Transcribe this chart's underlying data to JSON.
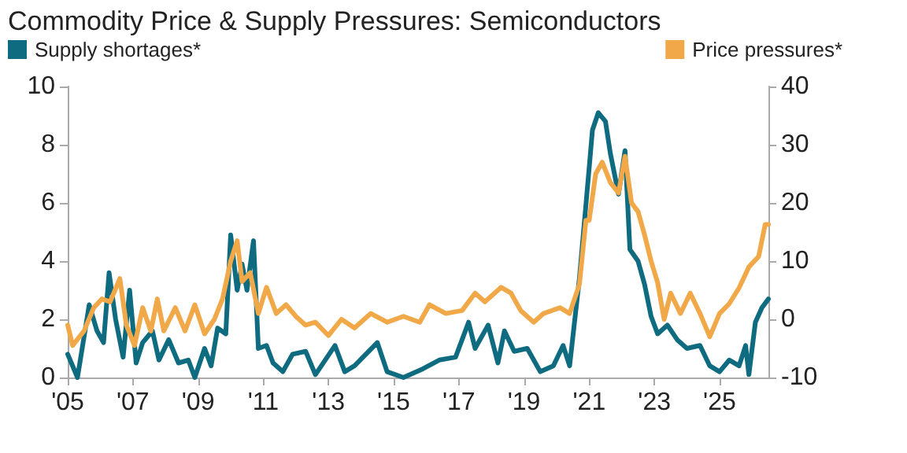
{
  "chart_data": {
    "type": "line",
    "title": "Commodity Price & Supply Pressures: Semiconductors",
    "xlim": [
      2005,
      2026.5
    ],
    "xticks": [
      {
        "value": 2005,
        "label": "'05"
      },
      {
        "value": 2007,
        "label": "'07"
      },
      {
        "value": 2009,
        "label": "'09"
      },
      {
        "value": 2011,
        "label": "'11"
      },
      {
        "value": 2013,
        "label": "'13"
      },
      {
        "value": 2015,
        "label": "'15"
      },
      {
        "value": 2017,
        "label": "'17"
      },
      {
        "value": 2019,
        "label": "'19"
      },
      {
        "value": 2021,
        "label": "'21"
      },
      {
        "value": 2023,
        "label": "'23"
      },
      {
        "value": 2025,
        "label": "'25"
      }
    ],
    "ylim": [
      0,
      10
    ],
    "yticks": [
      0,
      2,
      4,
      6,
      8,
      10
    ],
    "y2lim": [
      -10,
      40
    ],
    "y2ticks": [
      -10,
      0,
      10,
      20,
      30,
      40
    ],
    "grid": false,
    "legend": "top",
    "marker": "none",
    "line_style": "solid",
    "series": [
      {
        "name": "Supply shortages*",
        "color": "#0f6b80",
        "axis": "y",
        "x": [
          2005.0,
          2005.3,
          2005.66,
          2005.9,
          2006.1,
          2006.27,
          2006.47,
          2006.7,
          2006.9,
          2007.1,
          2007.3,
          2007.6,
          2007.8,
          2008.1,
          2008.4,
          2008.7,
          2008.9,
          2009.2,
          2009.4,
          2009.6,
          2009.85,
          2010.0,
          2010.2,
          2010.35,
          2010.5,
          2010.7,
          2010.85,
          2011.1,
          2011.3,
          2011.6,
          2011.9,
          2012.3,
          2012.6,
          2013.2,
          2013.5,
          2013.8,
          2014.5,
          2014.8,
          2015.3,
          2015.9,
          2016.4,
          2016.9,
          2017.3,
          2017.5,
          2017.9,
          2018.2,
          2018.4,
          2018.7,
          2019.1,
          2019.5,
          2019.9,
          2020.2,
          2020.4,
          2020.7,
          2021.0,
          2021.1,
          2021.28,
          2021.5,
          2021.65,
          2021.9,
          2022.1,
          2022.25,
          2022.5,
          2022.7,
          2022.9,
          2023.1,
          2023.4,
          2023.7,
          2024.0,
          2024.4,
          2024.7,
          2025.0,
          2025.3,
          2025.6,
          2025.8,
          2025.9,
          2026.1,
          2026.3,
          2026.5
        ],
        "values": [
          0.8,
          0.0,
          2.5,
          1.6,
          1.2,
          3.6,
          2.0,
          0.7,
          3.0,
          0.5,
          1.2,
          1.6,
          0.6,
          1.3,
          0.5,
          0.6,
          0.0,
          1.0,
          0.4,
          1.7,
          1.5,
          4.9,
          3.0,
          3.9,
          3.0,
          4.7,
          1.0,
          1.1,
          0.5,
          0.2,
          0.8,
          0.9,
          0.1,
          1.1,
          0.2,
          0.4,
          1.2,
          0.2,
          0.0,
          0.3,
          0.6,
          0.7,
          1.9,
          1.0,
          1.8,
          0.5,
          1.6,
          0.9,
          1.0,
          0.2,
          0.4,
          1.1,
          0.4,
          3.4,
          7.2,
          8.5,
          9.1,
          8.8,
          7.7,
          6.3,
          7.8,
          4.4,
          4.0,
          3.2,
          2.1,
          1.5,
          1.8,
          1.3,
          1.0,
          1.1,
          0.4,
          0.2,
          0.6,
          0.4,
          1.1,
          0.1,
          1.9,
          2.4,
          2.7
        ]
      },
      {
        "name": "Price pressures*",
        "color": "#f0a848",
        "axis": "y2",
        "x": [
          2005.0,
          2005.15,
          2005.5,
          2005.8,
          2006.05,
          2006.3,
          2006.6,
          2006.8,
          2007.05,
          2007.3,
          2007.55,
          2007.75,
          2007.95,
          2008.3,
          2008.6,
          2008.9,
          2009.2,
          2009.5,
          2009.75,
          2010.0,
          2010.2,
          2010.35,
          2010.6,
          2010.85,
          2011.1,
          2011.4,
          2011.7,
          2012.0,
          2012.3,
          2012.6,
          2013.0,
          2013.4,
          2013.8,
          2014.3,
          2014.8,
          2015.3,
          2015.8,
          2016.1,
          2016.6,
          2017.1,
          2017.5,
          2017.8,
          2018.3,
          2018.6,
          2018.9,
          2019.3,
          2019.6,
          2020.1,
          2020.4,
          2020.7,
          2020.9,
          2021.0,
          2021.2,
          2021.4,
          2021.65,
          2021.9,
          2022.1,
          2022.3,
          2022.5,
          2022.7,
          2022.9,
          2023.1,
          2023.3,
          2023.5,
          2023.8,
          2024.1,
          2024.4,
          2024.7,
          2025.0,
          2025.3,
          2025.6,
          2025.9,
          2026.2,
          2026.4,
          2026.5
        ],
        "values": [
          -1,
          -4.5,
          -2,
          2,
          3.5,
          3,
          7,
          -1,
          -4.5,
          2,
          -2,
          3.5,
          -2,
          2,
          -2,
          2.5,
          -2.5,
          0,
          3.5,
          10,
          13.5,
          6.5,
          8,
          1,
          5.5,
          1,
          2.5,
          0.5,
          -1,
          -0.5,
          -2.8,
          0,
          -1.5,
          1,
          -0.5,
          0.5,
          -0.5,
          2.5,
          1,
          1.5,
          4.5,
          3,
          5.5,
          4.5,
          1.5,
          -0.5,
          1,
          2,
          1,
          6,
          17,
          17,
          25,
          27,
          23.5,
          21.7,
          28,
          20,
          18.5,
          14.5,
          10,
          6.3,
          0,
          4.5,
          1,
          4.5,
          1,
          -3,
          1,
          2.7,
          5.4,
          9,
          10.8,
          16.3,
          16.3
        ]
      }
    ]
  }
}
